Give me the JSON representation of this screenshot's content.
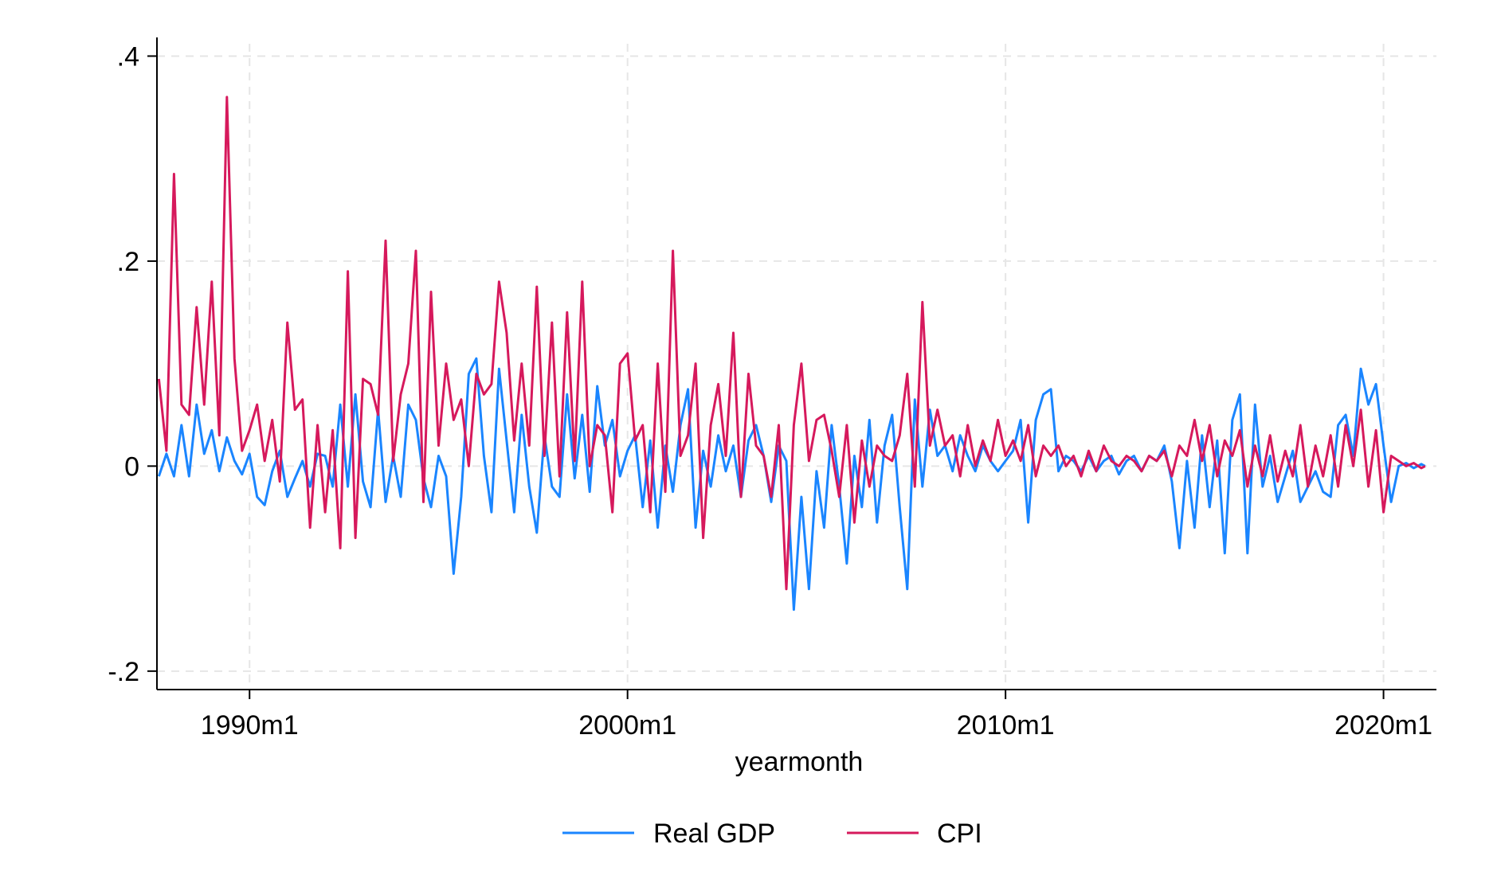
{
  "chart_data": {
    "type": "line",
    "title": "",
    "xlabel": "yearmonth",
    "ylabel": "",
    "x_ticks": [
      {
        "label": "1990m1",
        "value": 1990.0
      },
      {
        "label": "2000m1",
        "value": 2000.0
      },
      {
        "label": "2010m1",
        "value": 2010.0
      },
      {
        "label": "2020m1",
        "value": 2020.0
      }
    ],
    "y_ticks": [
      {
        "label": ".4",
        "value": 0.4
      },
      {
        "label": ".2",
        "value": 0.2
      },
      {
        "label": "0",
        "value": 0.0
      },
      {
        "label": "-.2",
        "value": -0.2
      }
    ],
    "xlim": [
      1987.55,
      2021.4
    ],
    "ylim": [
      -0.218,
      0.412
    ],
    "grid": true,
    "legend_position": "bottom",
    "x": [
      1987.6,
      1987.8,
      1988.0,
      1988.2,
      1988.4,
      1988.6,
      1988.8,
      1989.0,
      1989.2,
      1989.4,
      1989.6,
      1989.8,
      1990.0,
      1990.2,
      1990.4,
      1990.6,
      1990.8,
      1991.0,
      1991.2,
      1991.4,
      1991.6,
      1991.8,
      1992.0,
      1992.2,
      1992.4,
      1992.6,
      1992.8,
      1993.0,
      1993.2,
      1993.4,
      1993.6,
      1993.8,
      1994.0,
      1994.2,
      1994.4,
      1994.6,
      1994.8,
      1995.0,
      1995.2,
      1995.4,
      1995.6,
      1995.8,
      1996.0,
      1996.2,
      1996.4,
      1996.6,
      1996.8,
      1997.0,
      1997.2,
      1997.4,
      1997.6,
      1997.8,
      1998.0,
      1998.2,
      1998.4,
      1998.6,
      1998.8,
      1999.0,
      1999.2,
      1999.4,
      1999.6,
      1999.8,
      2000.0,
      2000.2,
      2000.4,
      2000.6,
      2000.8,
      2001.0,
      2001.2,
      2001.4,
      2001.6,
      2001.8,
      2002.0,
      2002.2,
      2002.4,
      2002.6,
      2002.8,
      2003.0,
      2003.2,
      2003.4,
      2003.6,
      2003.8,
      2004.0,
      2004.2,
      2004.4,
      2004.6,
      2004.8,
      2005.0,
      2005.2,
      2005.4,
      2005.6,
      2005.8,
      2006.0,
      2006.2,
      2006.4,
      2006.6,
      2006.8,
      2007.0,
      2007.2,
      2007.4,
      2007.6,
      2007.8,
      2008.0,
      2008.2,
      2008.4,
      2008.6,
      2008.8,
      2009.0,
      2009.2,
      2009.4,
      2009.6,
      2009.8,
      2010.0,
      2010.2,
      2010.4,
      2010.6,
      2010.8,
      2011.0,
      2011.2,
      2011.4,
      2011.6,
      2011.8,
      2012.0,
      2012.2,
      2012.4,
      2012.6,
      2012.8,
      2013.0,
      2013.2,
      2013.4,
      2013.6,
      2013.8,
      2014.0,
      2014.2,
      2014.4,
      2014.6,
      2014.8,
      2015.0,
      2015.2,
      2015.4,
      2015.6,
      2015.8,
      2016.0,
      2016.2,
      2016.4,
      2016.6,
      2016.8,
      2017.0,
      2017.2,
      2017.4,
      2017.6,
      2017.8,
      2018.0,
      2018.2,
      2018.4,
      2018.6,
      2018.8,
      2019.0,
      2019.2,
      2019.4,
      2019.6,
      2019.8,
      2020.0,
      2020.2,
      2020.4,
      2020.6,
      2020.8,
      2021.0,
      2021.1
    ],
    "series": [
      {
        "name": "Real GDP",
        "color": "#1a85ff",
        "values": [
          -0.01,
          0.012,
          -0.01,
          0.04,
          -0.01,
          0.06,
          0.012,
          0.035,
          -0.005,
          0.028,
          0.005,
          -0.008,
          0.012,
          -0.03,
          -0.038,
          -0.005,
          0.015,
          -0.03,
          -0.012,
          0.005,
          -0.02,
          0.012,
          0.01,
          -0.02,
          0.06,
          -0.02,
          0.07,
          -0.015,
          -0.04,
          0.055,
          -0.035,
          0.01,
          -0.03,
          0.06,
          0.045,
          -0.012,
          -0.04,
          0.01,
          -0.01,
          -0.105,
          -0.03,
          0.09,
          0.105,
          0.01,
          -0.045,
          0.095,
          0.025,
          -0.045,
          0.05,
          -0.02,
          -0.065,
          0.03,
          -0.02,
          -0.03,
          0.07,
          -0.012,
          0.05,
          -0.025,
          0.078,
          0.02,
          0.045,
          -0.01,
          0.015,
          0.03,
          -0.04,
          0.025,
          -0.06,
          0.02,
          -0.025,
          0.04,
          0.075,
          -0.06,
          0.015,
          -0.02,
          0.03,
          -0.005,
          0.02,
          -0.03,
          0.025,
          0.04,
          0.01,
          -0.035,
          0.02,
          0.005,
          -0.14,
          -0.03,
          -0.12,
          -0.005,
          -0.06,
          0.04,
          -0.02,
          -0.095,
          0.01,
          -0.04,
          0.045,
          -0.055,
          0.02,
          0.05,
          -0.04,
          -0.12,
          0.065,
          -0.02,
          0.055,
          0.01,
          0.02,
          -0.005,
          0.03,
          0.01,
          -0.005,
          0.02,
          0.005,
          -0.005,
          0.005,
          0.015,
          0.045,
          -0.055,
          0.045,
          0.07,
          0.075,
          -0.005,
          0.01,
          0.005,
          -0.005,
          0.01,
          -0.005,
          0.005,
          0.01,
          -0.008,
          0.005,
          0.01,
          -0.005,
          0.01,
          0.005,
          0.02,
          -0.015,
          -0.08,
          0.005,
          -0.06,
          0.03,
          -0.04,
          0.025,
          -0.085,
          0.045,
          0.07,
          -0.085,
          0.06,
          -0.02,
          0.01,
          -0.035,
          -0.01,
          0.015,
          -0.035,
          -0.02,
          -0.005,
          -0.025,
          -0.03,
          0.04,
          0.05,
          0.01,
          0.095,
          0.06,
          0.08,
          0.02,
          -0.035,
          0.0,
          0.003,
          -0.002,
          0.002,
          0.0
        ]
      },
      {
        "name": "CPI",
        "color": "#d6195c",
        "values": [
          0.085,
          0.015,
          0.285,
          0.06,
          0.05,
          0.155,
          0.06,
          0.18,
          0.03,
          0.36,
          0.105,
          0.015,
          0.035,
          0.06,
          0.005,
          0.045,
          -0.015,
          0.14,
          0.055,
          0.065,
          -0.06,
          0.04,
          -0.045,
          0.035,
          -0.08,
          0.19,
          -0.07,
          0.085,
          0.08,
          0.05,
          0.22,
          0.005,
          0.07,
          0.1,
          0.21,
          -0.035,
          0.17,
          0.02,
          0.1,
          0.045,
          0.065,
          0.0,
          0.09,
          0.07,
          0.08,
          0.18,
          0.13,
          0.025,
          0.1,
          0.02,
          0.175,
          0.01,
          0.14,
          -0.01,
          0.15,
          0.005,
          0.18,
          0.0,
          0.04,
          0.03,
          -0.045,
          0.1,
          0.11,
          0.025,
          0.04,
          -0.045,
          0.1,
          -0.025,
          0.21,
          0.01,
          0.03,
          0.1,
          -0.07,
          0.04,
          0.08,
          0.01,
          0.13,
          -0.03,
          0.09,
          0.02,
          0.01,
          -0.03,
          0.04,
          -0.12,
          0.04,
          0.1,
          0.005,
          0.045,
          0.05,
          0.015,
          -0.03,
          0.04,
          -0.055,
          0.025,
          -0.02,
          0.02,
          0.01,
          0.005,
          0.03,
          0.09,
          -0.02,
          0.16,
          0.02,
          0.055,
          0.02,
          0.03,
          -0.01,
          0.04,
          0.0,
          0.025,
          0.005,
          0.045,
          0.01,
          0.025,
          0.005,
          0.04,
          -0.01,
          0.02,
          0.01,
          0.02,
          0.0,
          0.01,
          -0.01,
          0.015,
          -0.005,
          0.02,
          0.005,
          0.0,
          0.01,
          0.005,
          -0.005,
          0.01,
          0.005,
          0.015,
          -0.01,
          0.02,
          0.01,
          0.045,
          0.005,
          0.04,
          -0.01,
          0.025,
          0.01,
          0.035,
          -0.02,
          0.02,
          -0.01,
          0.03,
          -0.015,
          0.015,
          -0.01,
          0.04,
          -0.02,
          0.02,
          -0.01,
          0.03,
          -0.02,
          0.04,
          0.0,
          0.055,
          -0.02,
          0.035,
          -0.045,
          0.01,
          0.005,
          0.0,
          0.003,
          -0.002,
          0.0
        ]
      }
    ]
  }
}
